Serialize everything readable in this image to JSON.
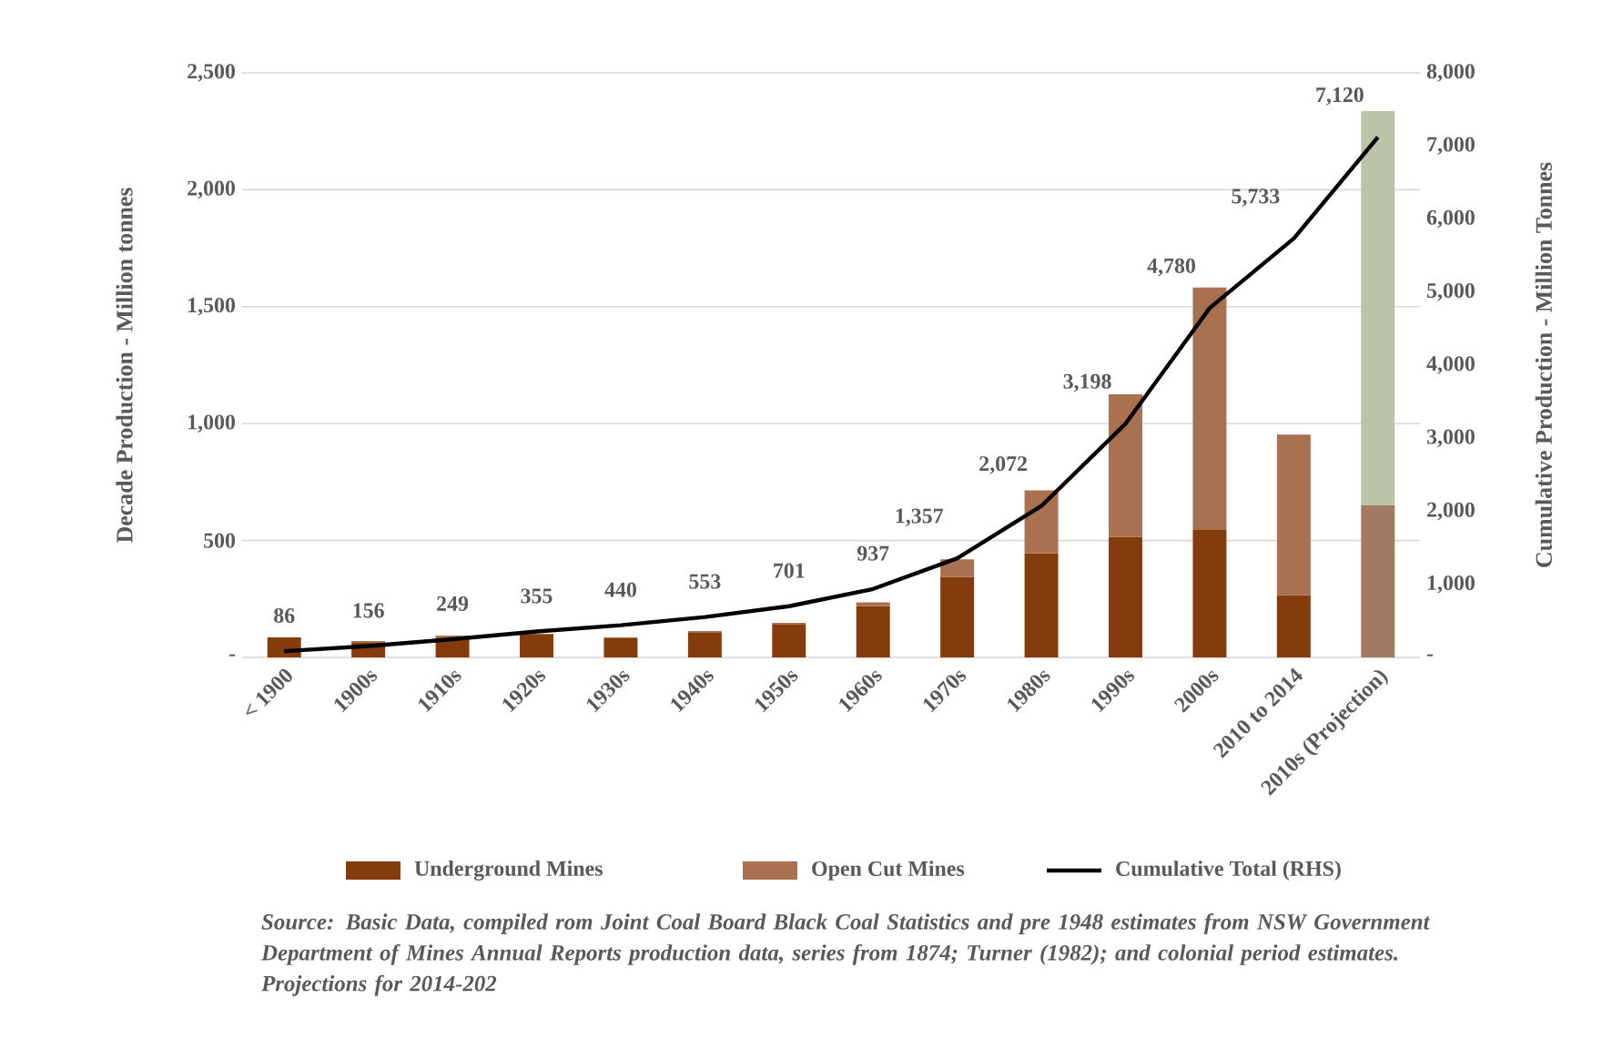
{
  "chart_data": {
    "type": "bar",
    "stacked": true,
    "ylabel": "Decade  Production  - Million tonnes",
    "y2label": "Cumulative  Production  - Million Tonnes",
    "categories": [
      "< 1900",
      "1900s",
      "1910s",
      "1920s",
      "1930s",
      "1940s",
      "1950s",
      "1960s",
      "1970s",
      "1980s",
      "1990s",
      "2000s",
      "2010 to 2014",
      "2010s (Projection)"
    ],
    "series": [
      {
        "name": "Underground Mines",
        "colors": [
          "#843c0c",
          "#843c0c",
          "#843c0c",
          "#843c0c",
          "#843c0c",
          "#843c0c",
          "#843c0c",
          "#843c0c",
          "#843c0c",
          "#843c0c",
          "#843c0c",
          "#843c0c",
          "#843c0c",
          "#a07a62"
        ],
        "values": [
          86,
          65,
          85,
          100,
          85,
          108,
          140,
          220,
          345,
          445,
          515,
          545,
          267,
          650
        ]
      },
      {
        "name": "Open Cut Mines",
        "colors": [
          "#a9714f",
          "#a9714f",
          "#a9714f",
          "#a9714f",
          "#a9714f",
          "#a9714f",
          "#a9714f",
          "#a9714f",
          "#a9714f",
          "#a9714f",
          "#a9714f",
          "#a9714f",
          "#a9714f",
          "#bcc4a8"
        ],
        "values": [
          0,
          5,
          8,
          null,
          0,
          5,
          8,
          16,
          75,
          270,
          610,
          1037,
          686,
          1686
        ]
      },
      {
        "name": "Cumulative Total (RHS)",
        "type": "line",
        "axis": "y2",
        "color": "#000000",
        "values": [
          86,
          156,
          249,
          355,
          440,
          553,
          701,
          937,
          1357,
          2072,
          3198,
          4780,
          5733,
          7120
        ],
        "value_labels": [
          "86",
          "156",
          "249",
          "355",
          "440",
          "553",
          "701",
          "937",
          "1,357",
          "2,072",
          "3,198",
          "4,780",
          "5,733",
          "7,120"
        ]
      }
    ],
    "ylim": [
      0,
      2500
    ],
    "yticks": [
      {
        "value": 0,
        "label": "-"
      },
      500,
      {
        "value": 1000,
        "label": "1,000"
      },
      {
        "value": 1500,
        "label": "1,500"
      },
      {
        "value": 2000,
        "label": "2,000"
      },
      {
        "value": 2500,
        "label": "2,500"
      }
    ],
    "y2lim": [
      0,
      8000
    ],
    "y2ticks": [
      {
        "value": 0,
        "label": "-"
      },
      {
        "value": 1000,
        "label": "1,000"
      },
      {
        "value": 2000,
        "label": "2,000"
      },
      {
        "value": 3000,
        "label": "3,000"
      },
      {
        "value": 4000,
        "label": "4,000"
      },
      {
        "value": 5000,
        "label": "5,000"
      },
      {
        "value": 6000,
        "label": "6,000"
      },
      {
        "value": 7000,
        "label": "7,000"
      },
      {
        "value": 8000,
        "label": "8,000"
      }
    ],
    "grid": "y",
    "legend": "bottom",
    "annotations": [
      "Source: Basic Data, compiled rom Joint Coal Board Black Coal Statistics and pre 1948 estimates from NSW Government Department of Mines Annual Reports production data, series from 1874; Turner (1982); and colonial period estimates. Projections for 2014-202"
    ]
  }
}
